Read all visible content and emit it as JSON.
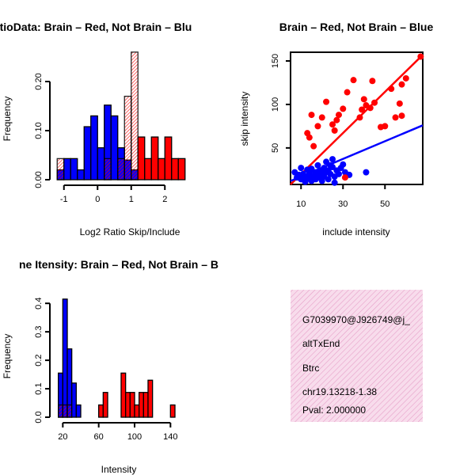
{
  "chart_data": [
    {
      "type": "bar",
      "title": "RatioData: Brain – Red, Not Brain – Blu",
      "xlabel": "Log2 Ratio Skip/Include",
      "ylabel": "Frequency",
      "xlim": [
        -1.3,
        2.7
      ],
      "ylim": [
        0,
        0.25
      ],
      "xticks": [
        "-1",
        "0",
        "1",
        "2"
      ],
      "yticks": [
        "0.00",
        "0.10",
        "0.20"
      ],
      "bin_width": 0.2,
      "bin_start": -1.2,
      "series": [
        {
          "name": "Not Brain",
          "color": "#0000ff",
          "values": [
            0.02,
            0.043,
            0.043,
            0.02,
            0.108,
            0.13,
            0.065,
            0.152,
            0.13,
            0.065,
            0.04,
            0.02,
            0,
            0,
            0,
            0,
            0,
            0,
            0,
            0
          ]
        },
        {
          "name": "Brain",
          "color": "#ff0000",
          "values": [
            0.043,
            0,
            0,
            0,
            0,
            0,
            0,
            0.043,
            0,
            0.043,
            0.17,
            0.26,
            0.087,
            0.043,
            0.087,
            0.043,
            0.087,
            0.043,
            0.043,
            0
          ]
        }
      ]
    },
    {
      "type": "scatter",
      "title": "Brain – Red, Not Brain – Blue",
      "xlabel": "include intensity",
      "ylabel": "skip intensity",
      "xlim": [
        5,
        68
      ],
      "ylim": [
        8,
        160
      ],
      "xticks": [
        "10",
        "30",
        "50"
      ],
      "yticks": [
        "50",
        "100",
        "150"
      ],
      "series": [
        {
          "name": "Brain",
          "color": "#ff0000",
          "points": [
            [
              67,
              155
            ],
            [
              60,
              130
            ],
            [
              58,
              123
            ],
            [
              53,
              118
            ],
            [
              57,
              101
            ],
            [
              58,
              87
            ],
            [
              55,
              85
            ],
            [
              50,
              75
            ],
            [
              48,
              74
            ],
            [
              45,
              102
            ],
            [
              43,
              96
            ],
            [
              40,
              106
            ],
            [
              41,
              99
            ],
            [
              39,
              94
            ],
            [
              38,
              85
            ],
            [
              35,
              128
            ],
            [
              32,
              114
            ],
            [
              30,
              95
            ],
            [
              28,
              88
            ],
            [
              27,
              82
            ],
            [
              25,
              77
            ],
            [
              22,
              103
            ],
            [
              20,
              85
            ],
            [
              18,
              75
            ],
            [
              15,
              88
            ],
            [
              13,
              67
            ],
            [
              14,
              62
            ],
            [
              26,
              70
            ],
            [
              31,
              16
            ],
            [
              44,
              127
            ],
            [
              16,
              52
            ]
          ],
          "fit": [
            [
              5,
              8
            ],
            [
              68,
              157
            ]
          ]
        },
        {
          "name": "Not Brain",
          "color": "#0000ff",
          "points": [
            [
              7,
              22
            ],
            [
              8,
              16
            ],
            [
              9,
              19
            ],
            [
              10,
              14
            ],
            [
              10,
              27
            ],
            [
              11,
              20
            ],
            [
              12,
              12
            ],
            [
              12,
              17
            ],
            [
              13,
              25
            ],
            [
              14,
              15
            ],
            [
              14,
              20
            ],
            [
              15,
              26
            ],
            [
              15,
              12
            ],
            [
              16,
              18
            ],
            [
              17,
              22
            ],
            [
              17,
              14
            ],
            [
              18,
              30
            ],
            [
              18,
              19
            ],
            [
              19,
              24
            ],
            [
              19,
              16
            ],
            [
              20,
              12
            ],
            [
              20,
              21
            ],
            [
              21,
              27
            ],
            [
              21,
              17
            ],
            [
              22,
              34
            ],
            [
              22,
              22
            ],
            [
              23,
              24
            ],
            [
              23,
              14
            ],
            [
              24,
              30
            ],
            [
              24,
              20
            ],
            [
              25,
              28
            ],
            [
              25,
              37
            ],
            [
              26,
              17
            ],
            [
              26,
              10
            ],
            [
              27,
              24
            ],
            [
              28,
              20
            ],
            [
              29,
              27
            ],
            [
              30,
              31
            ],
            [
              31,
              22
            ],
            [
              41,
              22
            ],
            [
              33,
              19
            ],
            [
              12,
              11
            ]
          ],
          "fit": [
            [
              5,
              12
            ],
            [
              68,
              76
            ]
          ]
        }
      ]
    },
    {
      "type": "bar",
      "title": "ne Itensity: Brain – Red, Not Brain – B",
      "xlabel": "Intensity",
      "ylabel": "Frequency",
      "xlim": [
        10,
        160
      ],
      "ylim": [
        0,
        0.42
      ],
      "xticks": [
        "20",
        "60",
        "100",
        "140"
      ],
      "yticks": [
        "0.0",
        "0.1",
        "0.2",
        "0.3",
        "0.4"
      ],
      "bin_width": 5,
      "bin_start": 15,
      "series": [
        {
          "name": "Not Brain",
          "color": "#0000ff",
          "values": [
            0.155,
            0.415,
            0.24,
            0.12,
            0.043,
            0,
            0,
            0,
            0,
            0,
            0,
            0,
            0,
            0,
            0,
            0,
            0,
            0,
            0,
            0,
            0,
            0,
            0,
            0,
            0,
            0,
            0,
            0
          ]
        },
        {
          "name": "Brain",
          "color": "#ff0000",
          "values": [
            0.043,
            0.043,
            0.043,
            0,
            0,
            0,
            0,
            0,
            0,
            0.043,
            0.087,
            0,
            0,
            0,
            0.155,
            0.087,
            0.087,
            0.043,
            0.087,
            0.087,
            0.13,
            0,
            0,
            0,
            0,
            0.043,
            0,
            0
          ]
        }
      ]
    }
  ],
  "info_box": {
    "lines": [
      "G7039970@J926749@j_",
      "altTxEnd",
      "Btrc",
      "chr19.13218-1.38"
    ],
    "pval": "Pval: 2.000000",
    "bg_color": "#f8dcec",
    "pval_color": "#cc0000"
  }
}
